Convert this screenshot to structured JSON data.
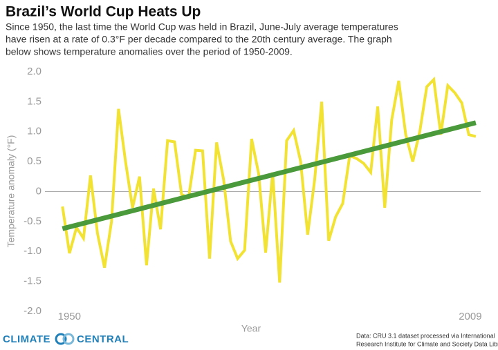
{
  "chart_data": {
    "type": "line",
    "title": "Brazil’s World Cup Heats Up",
    "subtitle": [
      "Since 1950, the last time the World Cup was held in Brazil, June-July average temperatures",
      "have risen at a rate of  0.3°F per decade compared to the 20th century average. The graph",
      "below shows temperature anomalies over the period of 1950-2009."
    ],
    "y_label": "Temperature anomaly (°F)",
    "x_label": "Year",
    "source": [
      "Data: CRU 3.1 dataset processed via International",
      "Research Institute for Climate and Society Data Library"
    ],
    "logo": [
      "CLIMATE",
      "CENTRAL"
    ],
    "x": [
      1950,
      1951,
      1952,
      1953,
      1954,
      1955,
      1956,
      1957,
      1958,
      1959,
      1960,
      1961,
      1962,
      1963,
      1964,
      1965,
      1966,
      1967,
      1968,
      1969,
      1970,
      1971,
      1972,
      1973,
      1974,
      1975,
      1976,
      1977,
      1978,
      1979,
      1980,
      1981,
      1982,
      1983,
      1984,
      1985,
      1986,
      1987,
      1988,
      1989,
      1990,
      1991,
      1992,
      1993,
      1994,
      1995,
      1996,
      1997,
      1998,
      1999,
      2000,
      2001,
      2002,
      2003,
      2004,
      2005,
      2006,
      2007,
      2008,
      2009
    ],
    "series": [
      {
        "name": "Temperature anomaly",
        "color": "#f2e234",
        "values": [
          -0.25,
          -1.03,
          -0.6,
          -0.78,
          0.27,
          -0.7,
          -1.27,
          -0.5,
          1.38,
          0.5,
          -0.27,
          0.25,
          -1.23,
          0.05,
          -0.63,
          0.85,
          0.83,
          -0.05,
          -0.1,
          0.69,
          0.68,
          -1.12,
          0.82,
          0.2,
          -0.83,
          -1.12,
          -0.98,
          0.88,
          0.3,
          -1.02,
          0.32,
          -1.52,
          0.85,
          1.02,
          0.5,
          -0.72,
          0.2,
          1.5,
          -0.82,
          -0.42,
          -0.2,
          0.6,
          0.55,
          0.47,
          0.32,
          1.42,
          -0.27,
          1.2,
          1.85,
          0.95,
          0.5,
          1.0,
          1.75,
          1.87,
          0.95,
          1.77,
          1.65,
          1.48,
          0.95,
          0.92
        ]
      },
      {
        "name": "Trend",
        "color": "#4a9a3c",
        "x": [
          1950,
          2009
        ],
        "values": [
          -0.62,
          1.15
        ]
      }
    ],
    "xlim": [
      1947.5,
      2009.7
    ],
    "xticks": [
      1950,
      2009
    ],
    "ylim": [
      -2,
      2
    ],
    "yticks": [
      {
        "value": 2,
        "label": "2.0"
      },
      {
        "value": 1.5,
        "label": "1.5"
      },
      {
        "value": 1,
        "label": "1.0"
      },
      {
        "value": 0.5,
        "label": "0.5"
      },
      0,
      {
        "value": -0.5,
        "label": "-0.5"
      },
      {
        "value": -1,
        "label": "-1.0"
      },
      {
        "value": -1.5,
        "label": "-1.5"
      },
      {
        "value": -2,
        "label": "-2.0"
      }
    ]
  }
}
